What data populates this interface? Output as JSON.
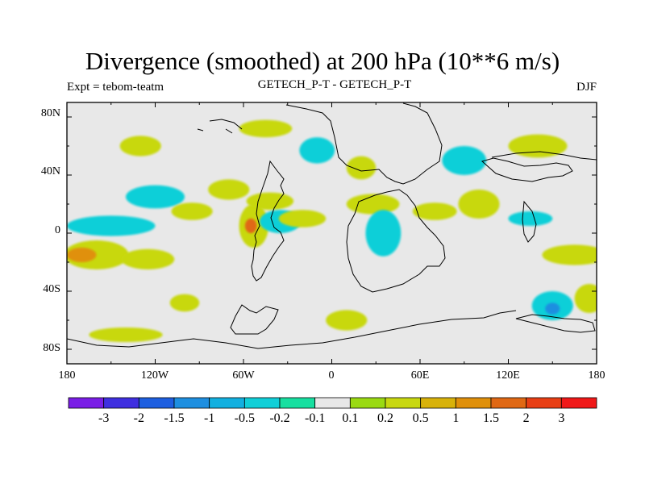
{
  "title": "Divergence (smoothed) at 200 hPa (10**6 m/s)",
  "subtitle_left": "Expt = tebom-teatm",
  "subtitle_center": "GETECH_P-T - GETECH_P-T",
  "subtitle_right": "DJF",
  "y_axis_labels": [
    "80N",
    "40N",
    "0",
    "40S",
    "80S"
  ],
  "x_axis_labels": [
    "180",
    "120W",
    "60W",
    "0",
    "60E",
    "120E",
    "180"
  ],
  "colorbar": {
    "colors": [
      "#7a1ee6",
      "#3f2fe0",
      "#1e5fe0",
      "#1e8fe0",
      "#12b0e0",
      "#10cfd8",
      "#17dfa0",
      "#e8e8e8",
      "#9ada12",
      "#c8d810",
      "#d8b20a",
      "#e0900a",
      "#e06814",
      "#e83e14",
      "#f01818"
    ],
    "labels": [
      "-3",
      "-2",
      "-1.5",
      "-1",
      "-0.5",
      "-0.2",
      "-0.1",
      "0.1",
      "0.2",
      "0.5",
      "1",
      "1.5",
      "2",
      "3"
    ]
  },
  "map_features": {
    "blobs": [
      {
        "lon": -160,
        "lat": -15,
        "rx": 22,
        "ry": 10,
        "level": 9
      },
      {
        "lon": -170,
        "lat": -15,
        "rx": 10,
        "ry": 5,
        "level": 11
      },
      {
        "lon": -125,
        "lat": -18,
        "rx": 18,
        "ry": 7,
        "level": 9
      },
      {
        "lon": -150,
        "lat": 5,
        "rx": 30,
        "ry": 7,
        "level": 5
      },
      {
        "lon": -120,
        "lat": 25,
        "rx": 20,
        "ry": 8,
        "level": 5
      },
      {
        "lon": -95,
        "lat": 15,
        "rx": 14,
        "ry": 6,
        "level": 9
      },
      {
        "lon": -70,
        "lat": 30,
        "rx": 14,
        "ry": 7,
        "level": 9
      },
      {
        "lon": -53,
        "lat": 5,
        "rx": 10,
        "ry": 15,
        "level": 9
      },
      {
        "lon": -55,
        "lat": 5,
        "rx": 4,
        "ry": 5,
        "level": 12
      },
      {
        "lon": -42,
        "lat": 22,
        "rx": 16,
        "ry": 6,
        "level": 9
      },
      {
        "lon": -35,
        "lat": 8,
        "rx": 14,
        "ry": 8,
        "level": 5
      },
      {
        "lon": -20,
        "lat": 10,
        "rx": 16,
        "ry": 6,
        "level": 9
      },
      {
        "lon": 28,
        "lat": 20,
        "rx": 18,
        "ry": 7,
        "level": 9
      },
      {
        "lon": 35,
        "lat": 0,
        "rx": 12,
        "ry": 16,
        "level": 5
      },
      {
        "lon": 70,
        "lat": 15,
        "rx": 15,
        "ry": 6,
        "level": 9
      },
      {
        "lon": 100,
        "lat": 20,
        "rx": 14,
        "ry": 10,
        "level": 9
      },
      {
        "lon": 135,
        "lat": 10,
        "rx": 15,
        "ry": 5,
        "level": 5
      },
      {
        "lon": 165,
        "lat": -15,
        "rx": 22,
        "ry": 7,
        "level": 9
      },
      {
        "lon": 150,
        "lat": -50,
        "rx": 14,
        "ry": 10,
        "level": 5
      },
      {
        "lon": 150,
        "lat": -52,
        "rx": 5,
        "ry": 4,
        "level": 3
      },
      {
        "lon": 175,
        "lat": -45,
        "rx": 10,
        "ry": 10,
        "level": 9
      },
      {
        "lon": -10,
        "lat": 57,
        "rx": 12,
        "ry": 9,
        "level": 5
      },
      {
        "lon": -45,
        "lat": 72,
        "rx": 18,
        "ry": 6,
        "level": 9
      },
      {
        "lon": -130,
        "lat": 60,
        "rx": 14,
        "ry": 7,
        "level": 9
      },
      {
        "lon": 20,
        "lat": 45,
        "rx": 10,
        "ry": 8,
        "level": 9
      },
      {
        "lon": 90,
        "lat": 50,
        "rx": 15,
        "ry": 10,
        "level": 5
      },
      {
        "lon": 140,
        "lat": 60,
        "rx": 20,
        "ry": 8,
        "level": 9
      },
      {
        "lon": -100,
        "lat": -48,
        "rx": 10,
        "ry": 6,
        "level": 9
      },
      {
        "lon": 10,
        "lat": -60,
        "rx": 14,
        "ry": 7,
        "level": 9
      },
      {
        "lon": -140,
        "lat": -70,
        "rx": 25,
        "ry": 5,
        "level": 9
      }
    ]
  }
}
